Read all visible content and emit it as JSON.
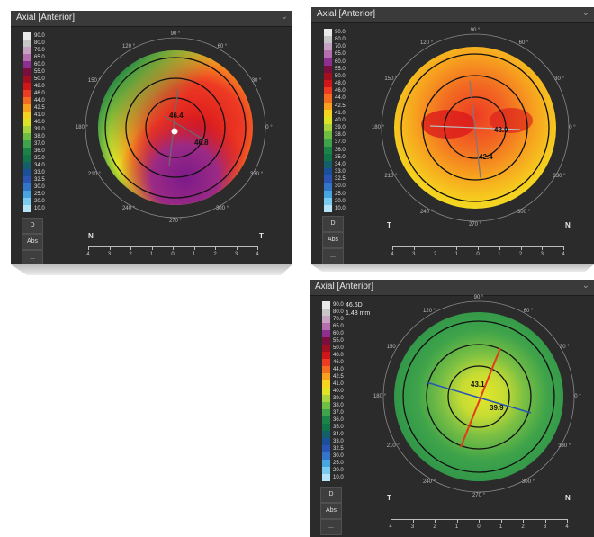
{
  "scale_colors": [
    "#e9e9e9",
    "#c7c7c7",
    "#c6a3c3",
    "#b46fae",
    "#8d2f8e",
    "#7c0e3f",
    "#a20f1e",
    "#d1161b",
    "#ee3b24",
    "#f36c22",
    "#f7a11f",
    "#f5d31f",
    "#dfe326",
    "#a8d33c",
    "#6fbe44",
    "#3ea34a",
    "#1c8346",
    "#117549",
    "#155f6b",
    "#1a4f9a",
    "#2b55b4",
    "#3376c8",
    "#47a6e0",
    "#7bcaf0",
    "#b6e4f7"
  ],
  "panels": [
    {
      "title": "Axial [Anterior]",
      "scale_labels": [
        "90.0",
        "80.0",
        "70.0",
        "65.0",
        "60.0",
        "55.0",
        "50.0",
        "48.0",
        "46.0",
        "44.0",
        "42.5",
        "41.0",
        "40.0",
        "39.0",
        "38.0",
        "37.0",
        "36.0",
        "35.0",
        "34.0",
        "33.0",
        "32.5",
        "30.0",
        "25.0",
        "20.0",
        "10.0"
      ],
      "buttons": [
        "D",
        "Abs",
        "..."
      ],
      "readout": [],
      "angles": [
        "90 °",
        "120 °",
        "60 °",
        "150 °",
        "30 °",
        "180 °",
        "0 °",
        "210 °",
        "330 °",
        "240 °",
        "300 °",
        "270 °"
      ],
      "corner_left": "N",
      "corner_right": "T",
      "map_values": [
        "46.4",
        "46.8"
      ],
      "ruler_ticks": [
        "4",
        "3",
        "2",
        "1",
        "0",
        "1",
        "2",
        "3",
        "4"
      ]
    },
    {
      "title": "Axial [Anterior]",
      "scale_labels": [
        "90.0",
        "80.0",
        "70.0",
        "65.0",
        "60.0",
        "55.0",
        "50.0",
        "48.0",
        "46.0",
        "44.0",
        "42.5",
        "41.0",
        "40.0",
        "39.0",
        "38.0",
        "37.0",
        "36.0",
        "35.0",
        "34.0",
        "33.0",
        "32.5",
        "30.0",
        "25.0",
        "20.0",
        "10.0"
      ],
      "buttons": [
        "D",
        "Abs",
        "..."
      ],
      "readout": [],
      "angles": [
        "90 °",
        "120 °",
        "60 °",
        "150 °",
        "30 °",
        "180 °",
        "0 °",
        "210 °",
        "330 °",
        "240 °",
        "300 °",
        "270 °"
      ],
      "corner_left": "T",
      "corner_right": "N",
      "map_values": [
        "43.9",
        "42.4"
      ],
      "ruler_ticks": [
        "4",
        "3",
        "2",
        "1",
        "0",
        "1",
        "2",
        "3",
        "4"
      ]
    },
    {
      "title": "Axial [Anterior]",
      "scale_labels": [
        "90.0",
        "80.0",
        "70.0",
        "65.0",
        "60.0",
        "55.0",
        "50.0",
        "48.0",
        "46.0",
        "44.0",
        "42.5",
        "41.0",
        "40.0",
        "39.0",
        "38.0",
        "37.0",
        "36.0",
        "35.0",
        "34.0",
        "33.0",
        "32.5",
        "30.0",
        "25.0",
        "20.0",
        "10.0"
      ],
      "buttons": [
        "D",
        "Abs",
        "..."
      ],
      "readout": [
        "46.6D",
        "1.48 mm"
      ],
      "angles": [
        "90 °",
        "120 °",
        "60 °",
        "150 °",
        "30 °",
        "180 °",
        "0 °",
        "210 °",
        "330 °",
        "240 °",
        "300 °",
        "270 °"
      ],
      "corner_left": "T",
      "corner_right": "N",
      "map_values": [
        "43.1",
        "39.9"
      ],
      "ruler_ticks": [
        "4",
        "3",
        "2",
        "1",
        "0",
        "1",
        "2",
        "3",
        "4"
      ]
    }
  ]
}
